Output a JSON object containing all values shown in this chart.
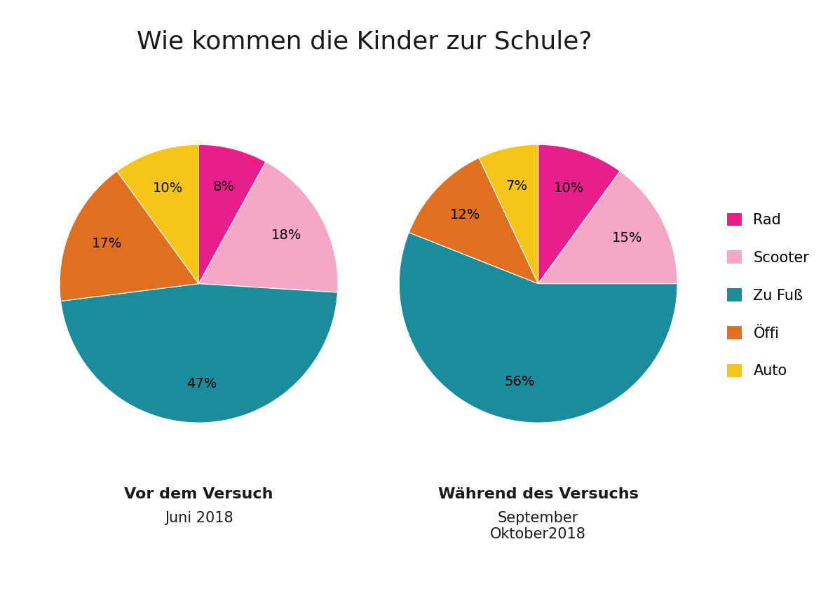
{
  "title": "Wie kommen die Kinder zur Schule?",
  "title_fontsize": 26,
  "pie1": {
    "values": [
      8,
      18,
      47,
      17,
      10
    ],
    "label": "Vor dem Versuch",
    "sublabel": "Juni 2018"
  },
  "pie2": {
    "values": [
      10,
      15,
      56,
      12,
      7
    ],
    "label": "Während des Versuchs",
    "sublabel": "September\nOktober2018"
  },
  "colors": [
    "#E91E8C",
    "#F4A7C7",
    "#1A8C9B",
    "#E07020",
    "#F5C518"
  ],
  "legend_labels": [
    "Rad",
    "Scooter",
    "Zu Fuß",
    "Öffi",
    "Auto"
  ],
  "background_color": "#FFFFFF",
  "label_fontsize": 16,
  "sublabel_fontsize": 15,
  "pct_fontsize": 14,
  "legend_fontsize": 15
}
